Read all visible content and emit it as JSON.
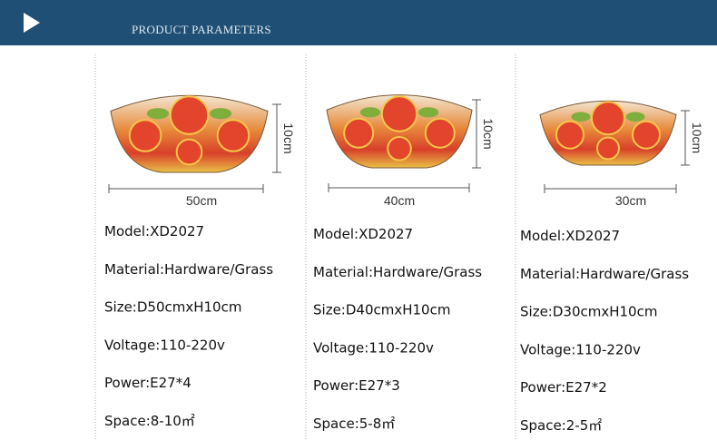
{
  "header": {
    "title": "PRODUCT PARAMETERS"
  },
  "products": [
    {
      "width": "50cm",
      "height": "10cm",
      "specs": [
        "Model:XD2027",
        "Material:Hardware/Grass",
        "Size:D50cmxH10cm",
        "Voltage:110-220v",
        "Power:E27*4",
        "Space:8-10㎡"
      ]
    },
    {
      "width": "40cm",
      "height": "10cm",
      "specs": [
        "Model:XD2027",
        "Material:Hardware/Grass",
        "Size:D40cmxH10cm",
        "Voltage:110-220v",
        "Power:E27*3",
        "Space:5-8㎡"
      ]
    },
    {
      "width": "30cm",
      "height": "10cm",
      "specs": [
        "Model:XD2027",
        "Material:Hardware/Grass",
        "Size:D30cmxH10cm",
        "Voltage:110-220v",
        "Power:E27*2",
        "Space:2-5㎡"
      ]
    }
  ]
}
